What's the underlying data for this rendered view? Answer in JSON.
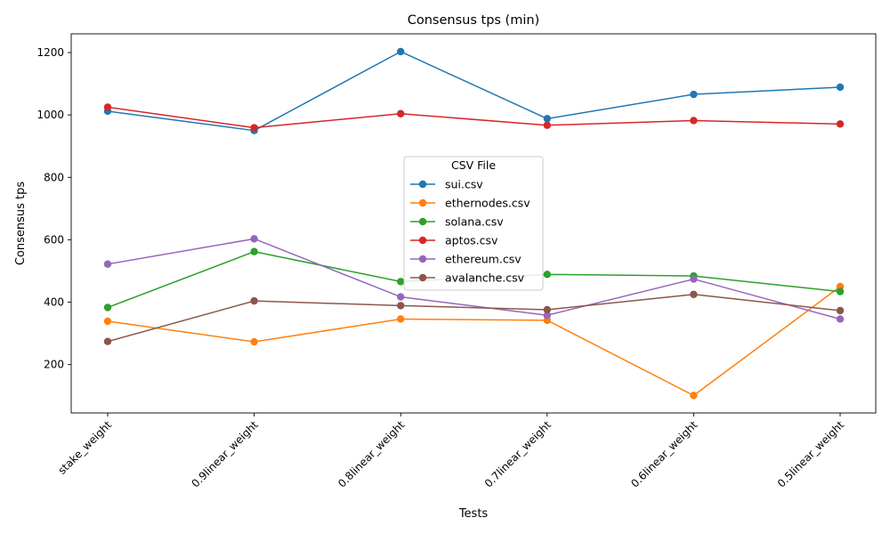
{
  "chart_data": {
    "type": "line",
    "title": "Consensus tps (min)",
    "xlabel": "Tests",
    "ylabel": "Consensus tps",
    "categories": [
      "stake_weight",
      "0.9linear_weight",
      "0.8linear_weight",
      "0.7linear_weight",
      "0.6linear_weight",
      "0.5linear_weight"
    ],
    "ylim": [
      45,
      1260
    ],
    "yticks": [
      200,
      400,
      600,
      800,
      1000,
      1200
    ],
    "grid": false,
    "legend": {
      "title": "CSV File",
      "placement": "center"
    },
    "series": [
      {
        "name": "sui.csv",
        "color": "#1f77b4",
        "values": [
          1012,
          950,
          1203,
          988,
          1066,
          1089
        ]
      },
      {
        "name": "ethernodes.csv",
        "color": "#ff7f0e",
        "values": [
          339,
          273,
          346,
          342,
          101,
          450
        ]
      },
      {
        "name": "solana.csv",
        "color": "#2ca02c",
        "values": [
          383,
          562,
          466,
          489,
          484,
          434
        ]
      },
      {
        "name": "aptos.csv",
        "color": "#d62728",
        "values": [
          1025,
          959,
          1004,
          967,
          982,
          971
        ]
      },
      {
        "name": "ethereum.csv",
        "color": "#9467bd",
        "values": [
          522,
          603,
          417,
          358,
          474,
          346
        ]
      },
      {
        "name": "avalanche.csv",
        "color": "#8c564b",
        "values": [
          274,
          404,
          389,
          376,
          425,
          373
        ]
      }
    ]
  }
}
